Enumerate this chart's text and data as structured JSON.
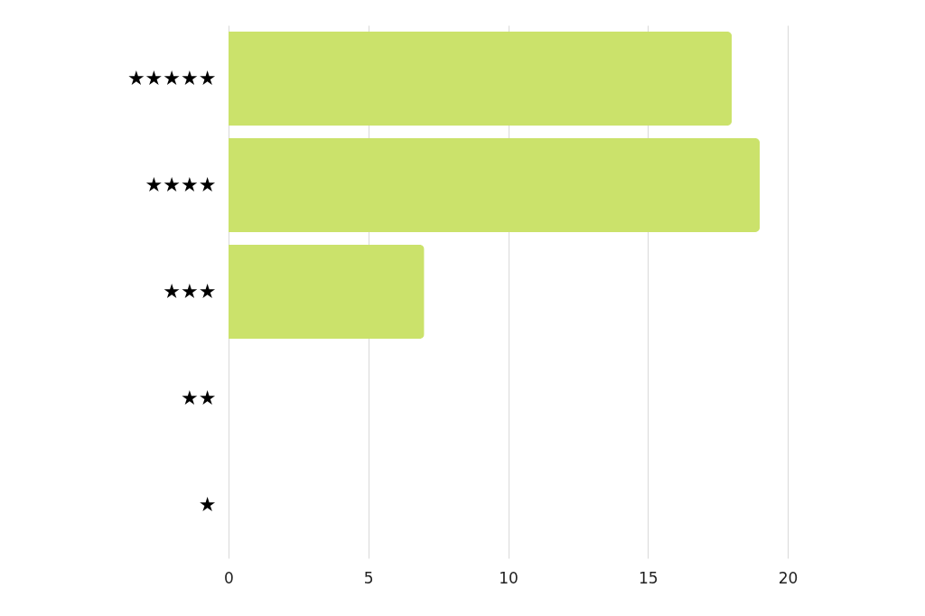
{
  "chart_data": {
    "type": "bar",
    "orientation": "horizontal",
    "categories": [
      "★★★★★",
      "★★★★",
      "★★★",
      "★★",
      "★"
    ],
    "values": [
      18,
      19,
      7,
      0,
      0
    ],
    "color": "#cbe26b",
    "xlim": [
      0,
      20
    ],
    "xticks": [
      0,
      5,
      10,
      15,
      20
    ],
    "grid": "x"
  }
}
